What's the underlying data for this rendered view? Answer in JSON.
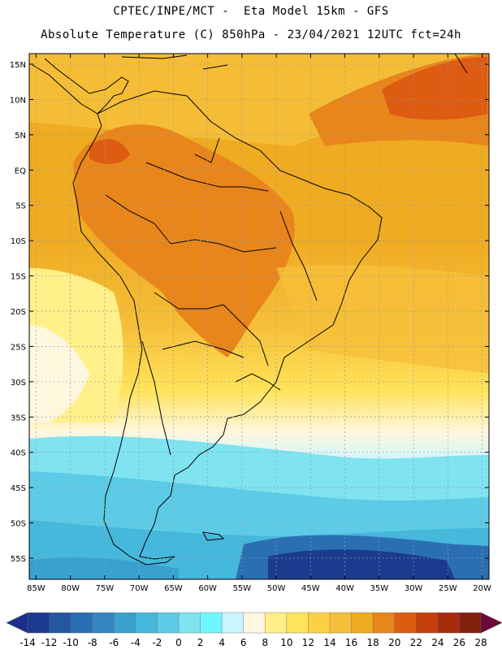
{
  "title": {
    "line1": "CPTEC/INPE/MCT -  Eta Model 15km - GFS",
    "line2": "Absolute Temperature (C) 850hPa - 23/04/2021 12UTC fct=24h"
  },
  "map": {
    "lat_labels": [
      "15N",
      "10N",
      "5N",
      "EQ",
      "5S",
      "10S",
      "15S",
      "20S",
      "25S",
      "30S",
      "35S",
      "40S",
      "45S",
      "50S",
      "55S"
    ],
    "lon_labels": [
      "85W",
      "80W",
      "75W",
      "70W",
      "65W",
      "60W",
      "55W",
      "50W",
      "45W",
      "40W",
      "35W",
      "30W",
      "25W",
      "20W"
    ],
    "extent": {
      "lon_min": -86,
      "lon_max": -19,
      "lat_min": -58,
      "lat_max": 16.5
    }
  },
  "colorbar": {
    "labels": [
      "-14",
      "-12",
      "-10",
      "-8",
      "-6",
      "-4",
      "-2",
      "0",
      "2",
      "4",
      "6",
      "8",
      "10",
      "12",
      "14",
      "16",
      "18",
      "20",
      "22",
      "24",
      "26",
      "28"
    ],
    "low_arrow_color": "#1b2f8a",
    "high_arrow_color": "#6b0a3a",
    "colors": [
      "#1b3c8e",
      "#2457a0",
      "#2b6fb3",
      "#3587c2",
      "#3aa1cf",
      "#45b8dc",
      "#5ccce6",
      "#7fe3f0",
      "#6ef7ff",
      "#cbf5ff",
      "#fff6de",
      "#fff08a",
      "#ffe35a",
      "#fbd143",
      "#f6bf3a",
      "#efab21",
      "#e8861c",
      "#de5b12",
      "#c6400e",
      "#a82c0c",
      "#83210c"
    ]
  }
}
